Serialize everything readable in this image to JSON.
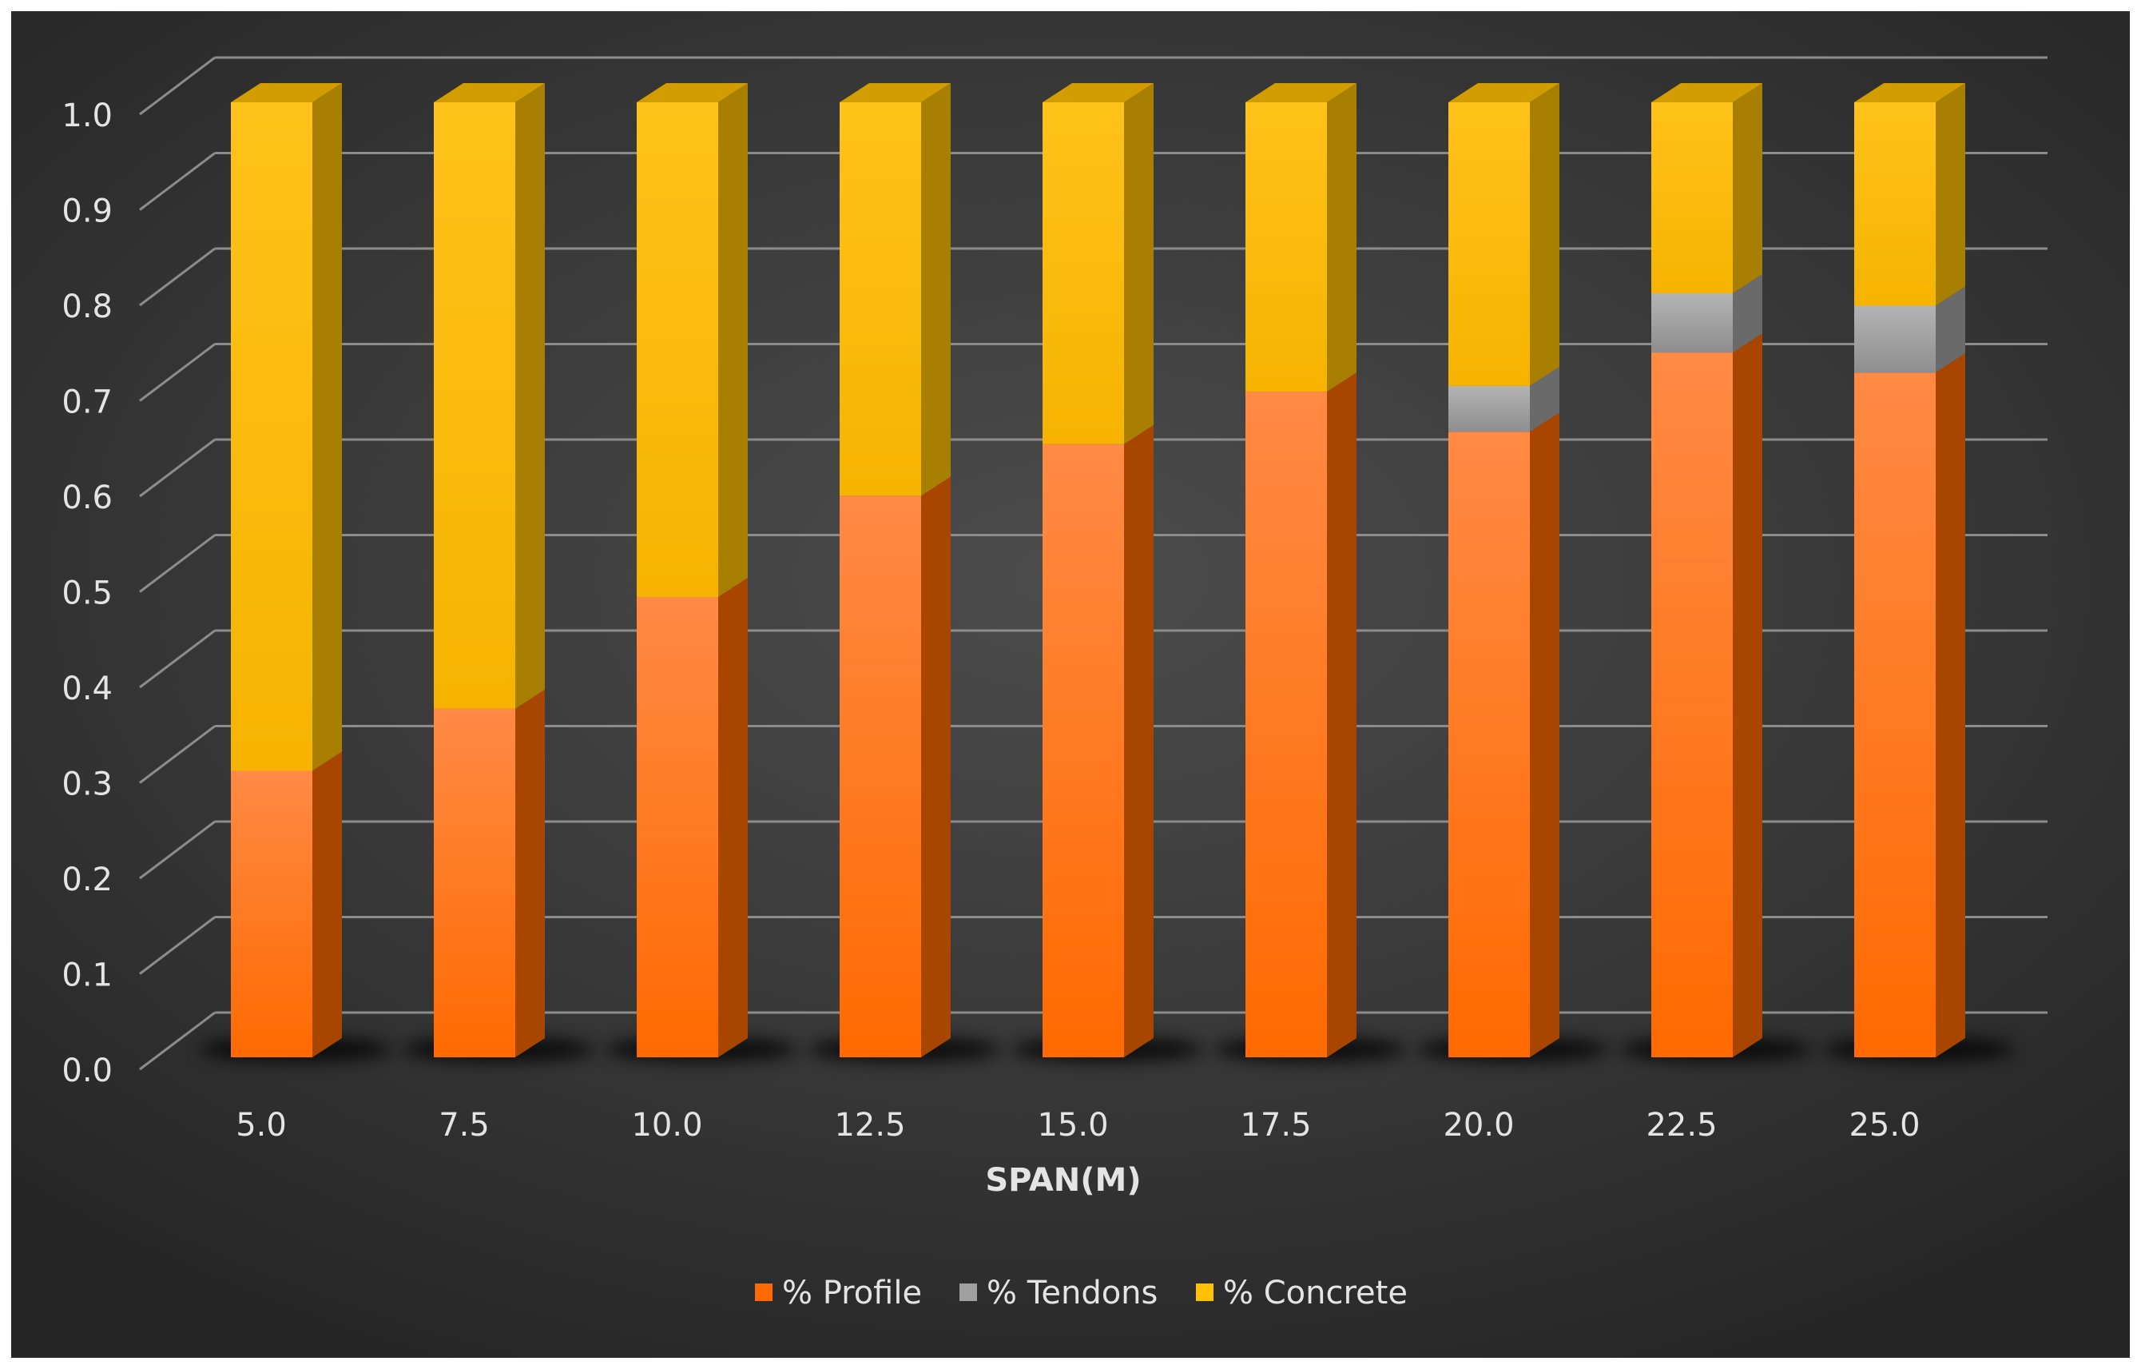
{
  "chart_data": {
    "type": "bar",
    "stacked": true,
    "style": "3d-column",
    "categories": [
      "5.0",
      "7.5",
      "10.0",
      "12.5",
      "15.0",
      "17.5",
      "20.0",
      "22.5",
      "25.0"
    ],
    "series": [
      {
        "name": "% Profile",
        "color": "#ff6a00",
        "values": [
          0.3,
          0.365,
          0.482,
          0.588,
          0.642,
          0.697,
          0.655,
          0.738,
          0.717
        ]
      },
      {
        "name": "% Tendons",
        "color": "#a0a0a0",
        "values": [
          0.0,
          0.0,
          0.0,
          0.0,
          0.0,
          0.0,
          0.048,
          0.062,
          0.07
        ]
      },
      {
        "name": "% Concrete",
        "color": "#ffc000",
        "values": [
          0.7,
          0.635,
          0.518,
          0.412,
          0.358,
          0.303,
          0.297,
          0.2,
          0.213
        ]
      }
    ],
    "y_ticks": [
      "0.0",
      "0.1",
      "0.2",
      "0.3",
      "0.4",
      "0.5",
      "0.6",
      "0.7",
      "0.8",
      "0.9",
      "1.0"
    ],
    "ylim": [
      0,
      1.0
    ],
    "title": "",
    "xlabel": "SPAN(M)",
    "ylabel": "",
    "grid": true,
    "legend_position": "bottom",
    "background": "#3c3c3c",
    "gridline_color": "#8c8c8c",
    "text_color": "#e4e4e4"
  }
}
